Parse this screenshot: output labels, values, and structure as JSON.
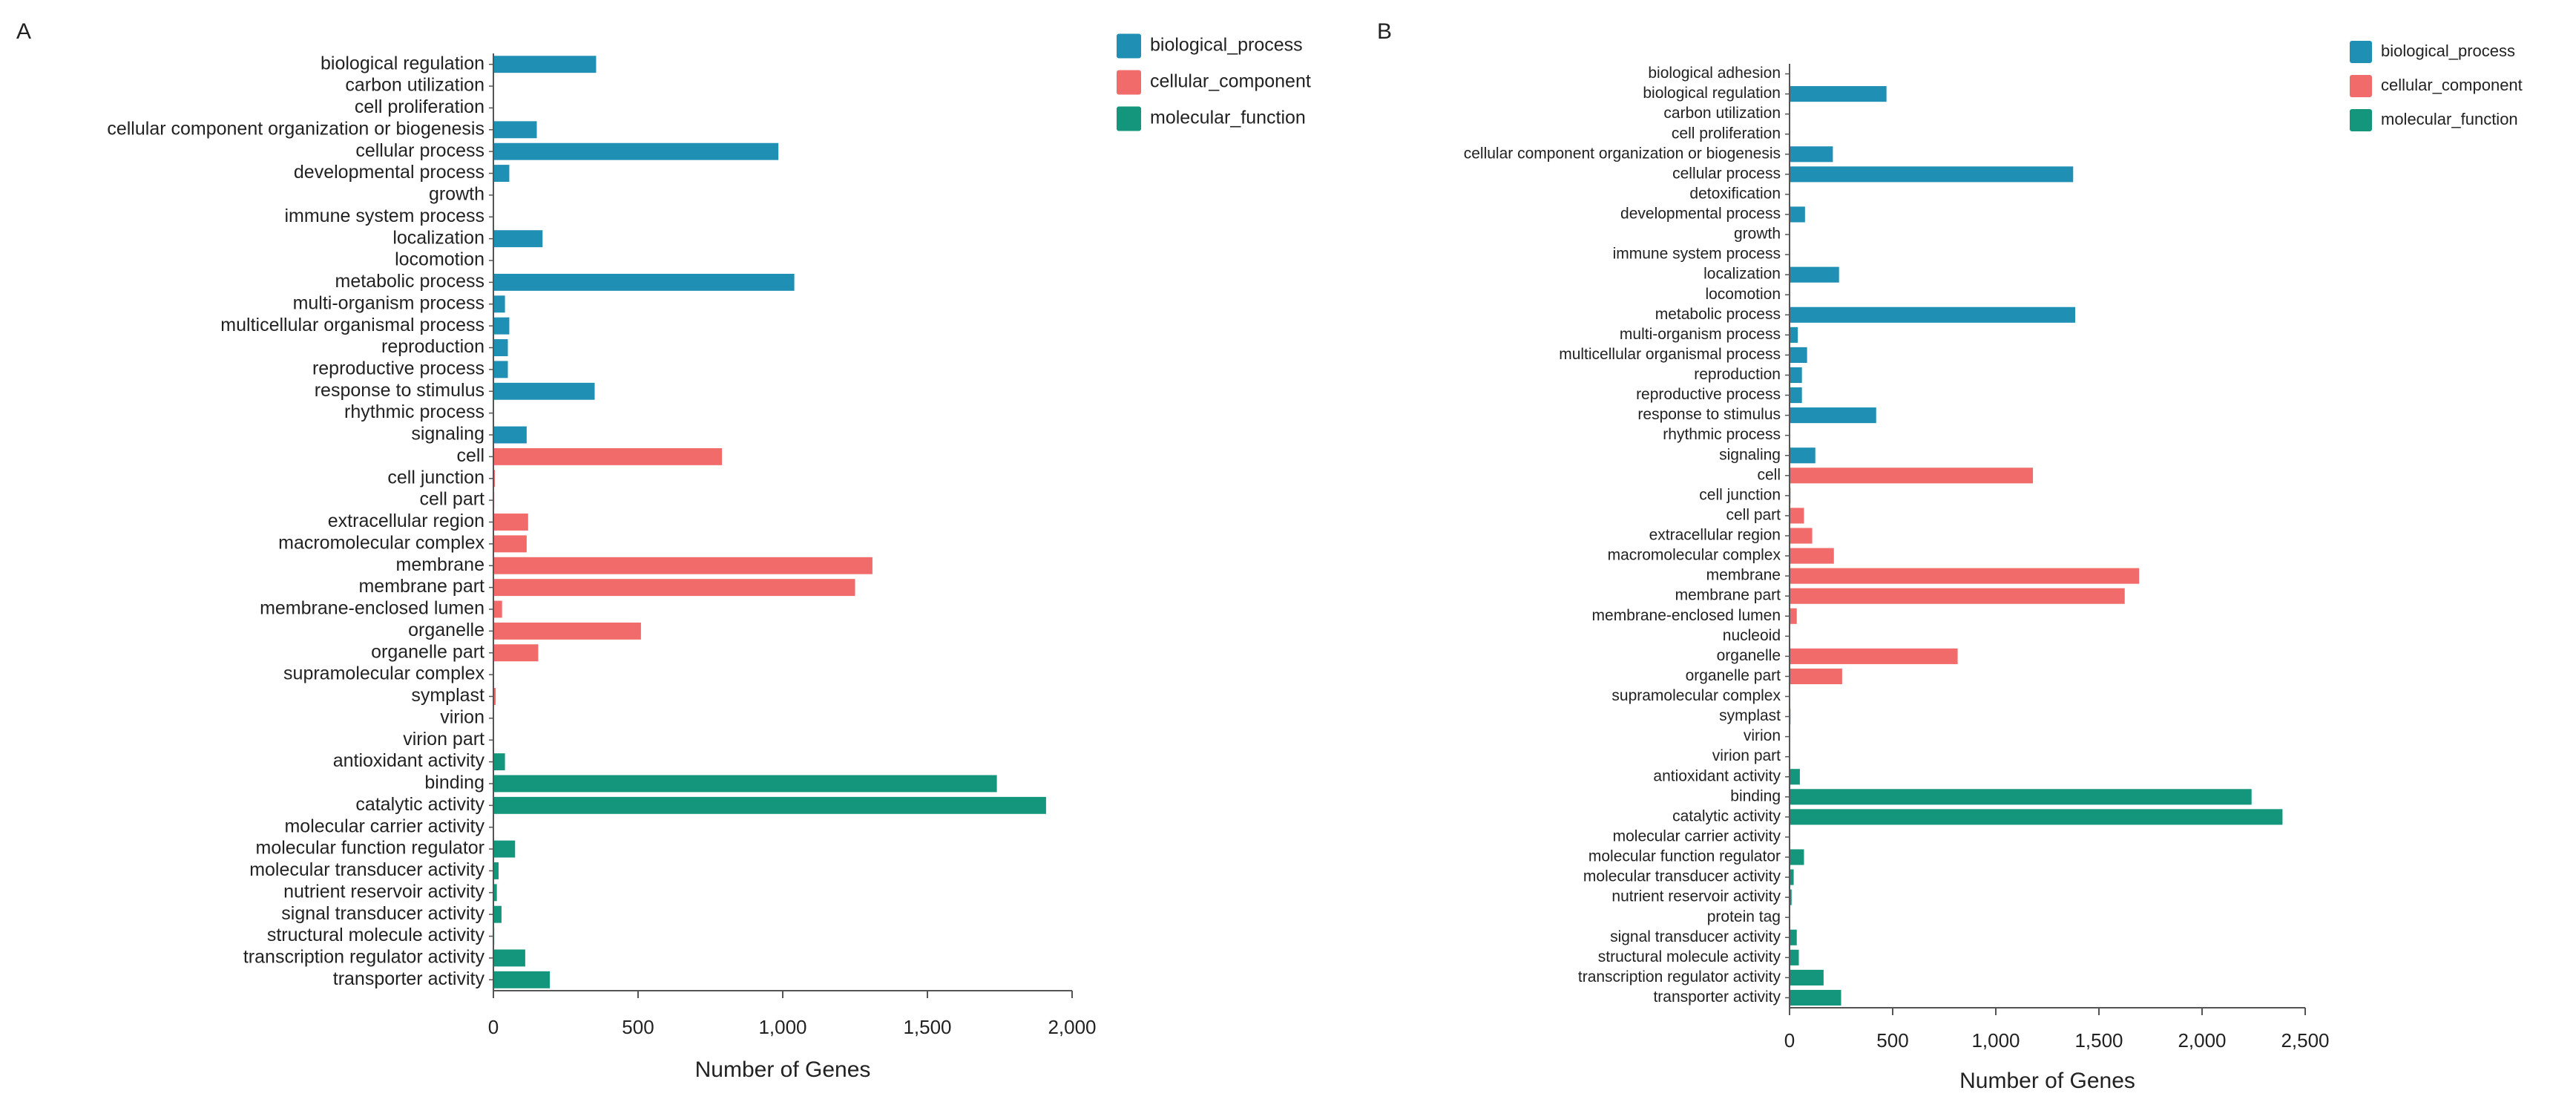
{
  "colors": {
    "biological_process": "#1f8fb4",
    "cellular_component": "#f26b6b",
    "molecular_function": "#13967b",
    "axis": "#555555",
    "text": "#222222"
  },
  "chart_data": [
    {
      "panel_label": "A",
      "type": "bar",
      "orientation": "horizontal",
      "xlabel": "Number of Genes",
      "xlim": [
        0,
        2000
      ],
      "xticks": [
        0,
        500,
        1000,
        1500,
        2000
      ],
      "xtick_labels": [
        "0",
        "500",
        "1,000",
        "1,500",
        "2,000"
      ],
      "legend_position": "top-right",
      "legend": [
        {
          "label": "biological_process",
          "color_key": "biological_process"
        },
        {
          "label": "cellular_component",
          "color_key": "cellular_component"
        },
        {
          "label": "molecular_function",
          "color_key": "molecular_function"
        }
      ],
      "categories": [
        {
          "label": "biological regulation",
          "value": 355,
          "group": "biological_process"
        },
        {
          "label": "carbon utilization",
          "value": 0,
          "group": "biological_process"
        },
        {
          "label": "cell proliferation",
          "value": 0,
          "group": "biological_process"
        },
        {
          "label": "cellular component organization or biogenesis",
          "value": 150,
          "group": "biological_process"
        },
        {
          "label": "cellular process",
          "value": 985,
          "group": "biological_process"
        },
        {
          "label": "developmental process",
          "value": 55,
          "group": "biological_process"
        },
        {
          "label": "growth",
          "value": 0,
          "group": "biological_process"
        },
        {
          "label": "immune system process",
          "value": 2,
          "group": "biological_process"
        },
        {
          "label": "localization",
          "value": 170,
          "group": "biological_process"
        },
        {
          "label": "locomotion",
          "value": 0,
          "group": "biological_process"
        },
        {
          "label": "metabolic process",
          "value": 1040,
          "group": "biological_process"
        },
        {
          "label": "multi-organism process",
          "value": 40,
          "group": "biological_process"
        },
        {
          "label": "multicellular organismal process",
          "value": 55,
          "group": "biological_process"
        },
        {
          "label": "reproduction",
          "value": 50,
          "group": "biological_process"
        },
        {
          "label": "reproductive process",
          "value": 50,
          "group": "biological_process"
        },
        {
          "label": "response to stimulus",
          "value": 350,
          "group": "biological_process"
        },
        {
          "label": "rhythmic process",
          "value": 0,
          "group": "biological_process"
        },
        {
          "label": "signaling",
          "value": 115,
          "group": "biological_process"
        },
        {
          "label": "cell",
          "value": 790,
          "group": "cellular_component"
        },
        {
          "label": "cell junction",
          "value": 5,
          "group": "cellular_component"
        },
        {
          "label": "cell part",
          "value": 3,
          "group": "cellular_component"
        },
        {
          "label": "extracellular region",
          "value": 120,
          "group": "cellular_component"
        },
        {
          "label": "macromolecular complex",
          "value": 115,
          "group": "cellular_component"
        },
        {
          "label": "membrane",
          "value": 1310,
          "group": "cellular_component"
        },
        {
          "label": "membrane part",
          "value": 1250,
          "group": "cellular_component"
        },
        {
          "label": "membrane-enclosed lumen",
          "value": 30,
          "group": "cellular_component"
        },
        {
          "label": "organelle",
          "value": 510,
          "group": "cellular_component"
        },
        {
          "label": "organelle part",
          "value": 155,
          "group": "cellular_component"
        },
        {
          "label": "supramolecular complex",
          "value": 2,
          "group": "cellular_component"
        },
        {
          "label": "symplast",
          "value": 8,
          "group": "cellular_component"
        },
        {
          "label": "virion",
          "value": 0,
          "group": "cellular_component"
        },
        {
          "label": "virion part",
          "value": 0,
          "group": "cellular_component"
        },
        {
          "label": "antioxidant activity",
          "value": 40,
          "group": "molecular_function"
        },
        {
          "label": "binding",
          "value": 1740,
          "group": "molecular_function"
        },
        {
          "label": "catalytic activity",
          "value": 1910,
          "group": "molecular_function"
        },
        {
          "label": "molecular carrier activity",
          "value": 0,
          "group": "molecular_function"
        },
        {
          "label": "molecular function regulator",
          "value": 75,
          "group": "molecular_function"
        },
        {
          "label": "molecular transducer activity",
          "value": 18,
          "group": "molecular_function"
        },
        {
          "label": "nutrient reservoir activity",
          "value": 12,
          "group": "molecular_function"
        },
        {
          "label": "signal transducer activity",
          "value": 28,
          "group": "molecular_function"
        },
        {
          "label": "structural molecule activity",
          "value": 3,
          "group": "molecular_function"
        },
        {
          "label": "transcription regulator activity",
          "value": 110,
          "group": "molecular_function"
        },
        {
          "label": "transporter activity",
          "value": 195,
          "group": "molecular_function"
        }
      ]
    },
    {
      "panel_label": "B",
      "type": "bar",
      "orientation": "horizontal",
      "xlabel": "Number of Genes",
      "xlim": [
        0,
        2500
      ],
      "xticks": [
        0,
        500,
        1000,
        1500,
        2000,
        2500
      ],
      "xtick_labels": [
        "0",
        "500",
        "1,000",
        "1,500",
        "2,000",
        "2,500"
      ],
      "legend_position": "top-right",
      "legend": [
        {
          "label": "biological_process",
          "color_key": "biological_process"
        },
        {
          "label": "cellular_component",
          "color_key": "cellular_component"
        },
        {
          "label": "molecular_function",
          "color_key": "molecular_function"
        }
      ],
      "categories": [
        {
          "label": "biological adhesion",
          "value": 0,
          "group": "biological_process"
        },
        {
          "label": "biological regulation",
          "value": 470,
          "group": "biological_process"
        },
        {
          "label": "carbon utilization",
          "value": 0,
          "group": "biological_process"
        },
        {
          "label": "cell proliferation",
          "value": 0,
          "group": "biological_process"
        },
        {
          "label": "cellular component organization or biogenesis",
          "value": 210,
          "group": "biological_process"
        },
        {
          "label": "cellular process",
          "value": 1375,
          "group": "biological_process"
        },
        {
          "label": "detoxification",
          "value": 0,
          "group": "biological_process"
        },
        {
          "label": "developmental process",
          "value": 75,
          "group": "biological_process"
        },
        {
          "label": "growth",
          "value": 0,
          "group": "biological_process"
        },
        {
          "label": "immune system process",
          "value": 2,
          "group": "biological_process"
        },
        {
          "label": "localization",
          "value": 240,
          "group": "biological_process"
        },
        {
          "label": "locomotion",
          "value": 0,
          "group": "biological_process"
        },
        {
          "label": "metabolic process",
          "value": 1385,
          "group": "biological_process"
        },
        {
          "label": "multi-organism process",
          "value": 40,
          "group": "biological_process"
        },
        {
          "label": "multicellular organismal process",
          "value": 85,
          "group": "biological_process"
        },
        {
          "label": "reproduction",
          "value": 60,
          "group": "biological_process"
        },
        {
          "label": "reproductive process",
          "value": 60,
          "group": "biological_process"
        },
        {
          "label": "response to stimulus",
          "value": 420,
          "group": "biological_process"
        },
        {
          "label": "rhythmic process",
          "value": 0,
          "group": "biological_process"
        },
        {
          "label": "signaling",
          "value": 125,
          "group": "biological_process"
        },
        {
          "label": "cell",
          "value": 1180,
          "group": "cellular_component"
        },
        {
          "label": "cell junction",
          "value": 5,
          "group": "cellular_component"
        },
        {
          "label": "cell part",
          "value": 70,
          "group": "cellular_component"
        },
        {
          "label": "extracellular region",
          "value": 110,
          "group": "cellular_component"
        },
        {
          "label": "macromolecular complex",
          "value": 215,
          "group": "cellular_component"
        },
        {
          "label": "membrane",
          "value": 1695,
          "group": "cellular_component"
        },
        {
          "label": "membrane part",
          "value": 1625,
          "group": "cellular_component"
        },
        {
          "label": "membrane-enclosed lumen",
          "value": 35,
          "group": "cellular_component"
        },
        {
          "label": "nucleoid",
          "value": 0,
          "group": "cellular_component"
        },
        {
          "label": "organelle",
          "value": 815,
          "group": "cellular_component"
        },
        {
          "label": "organelle part",
          "value": 255,
          "group": "cellular_component"
        },
        {
          "label": "supramolecular complex",
          "value": 2,
          "group": "cellular_component"
        },
        {
          "label": "symplast",
          "value": 5,
          "group": "cellular_component"
        },
        {
          "label": "virion",
          "value": 0,
          "group": "cellular_component"
        },
        {
          "label": "virion part",
          "value": 0,
          "group": "cellular_component"
        },
        {
          "label": "antioxidant activity",
          "value": 50,
          "group": "molecular_function"
        },
        {
          "label": "binding",
          "value": 2240,
          "group": "molecular_function"
        },
        {
          "label": "catalytic activity",
          "value": 2390,
          "group": "molecular_function"
        },
        {
          "label": "molecular carrier activity",
          "value": 0,
          "group": "molecular_function"
        },
        {
          "label": "molecular function regulator",
          "value": 70,
          "group": "molecular_function"
        },
        {
          "label": "molecular transducer activity",
          "value": 20,
          "group": "molecular_function"
        },
        {
          "label": "nutrient reservoir activity",
          "value": 10,
          "group": "molecular_function"
        },
        {
          "label": "protein tag",
          "value": 0,
          "group": "molecular_function"
        },
        {
          "label": "signal transducer activity",
          "value": 35,
          "group": "molecular_function"
        },
        {
          "label": "structural molecule activity",
          "value": 45,
          "group": "molecular_function"
        },
        {
          "label": "transcription regulator activity",
          "value": 165,
          "group": "molecular_function"
        },
        {
          "label": "transporter activity",
          "value": 250,
          "group": "molecular_function"
        }
      ]
    }
  ]
}
